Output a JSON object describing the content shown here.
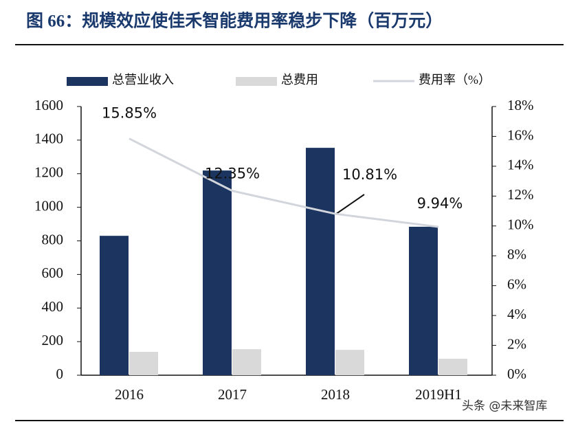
{
  "chart_data": {
    "type": "bar",
    "title": "图 66：规模效应使佳禾智能费用率稳步下降（百万元）",
    "categories": [
      "2016",
      "2017",
      "2018",
      "2019H1"
    ],
    "series": [
      {
        "name": "总营业收入",
        "color": "#1b3560",
        "type": "bar",
        "values": [
          830,
          1219,
          1354,
          884
        ]
      },
      {
        "name": "总费用",
        "color": "#d9d9d9",
        "type": "bar",
        "values": [
          139,
          155,
          151,
          98
        ]
      },
      {
        "name": "费用率（%）",
        "color": "#d2d5dc",
        "type": "line",
        "axis": "y2",
        "values": [
          15.85,
          12.35,
          10.81,
          9.94
        ],
        "value_labels": [
          "15.85%",
          "12.35%",
          "10.81%",
          "9.94%"
        ]
      }
    ],
    "ylim": [
      0,
      1600
    ],
    "yticks": [
      0,
      200,
      400,
      600,
      800,
      1000,
      1200,
      1400,
      1600
    ],
    "y2lim": [
      0,
      18
    ],
    "y2ticks": [
      {
        "value": 0,
        "label": "0%"
      },
      {
        "value": 2,
        "label": "2%"
      },
      {
        "value": 4,
        "label": "4%"
      },
      {
        "value": 6,
        "label": "6%"
      },
      {
        "value": 8,
        "label": "8%"
      },
      {
        "value": 10,
        "label": "10%"
      },
      {
        "value": 12,
        "label": "12%"
      },
      {
        "value": 14,
        "label": "14%"
      },
      {
        "value": 16,
        "label": "16%"
      },
      {
        "value": 18,
        "label": "18%"
      }
    ],
    "grid": false,
    "legend": "top"
  },
  "watermark": "头条 @未来智库"
}
